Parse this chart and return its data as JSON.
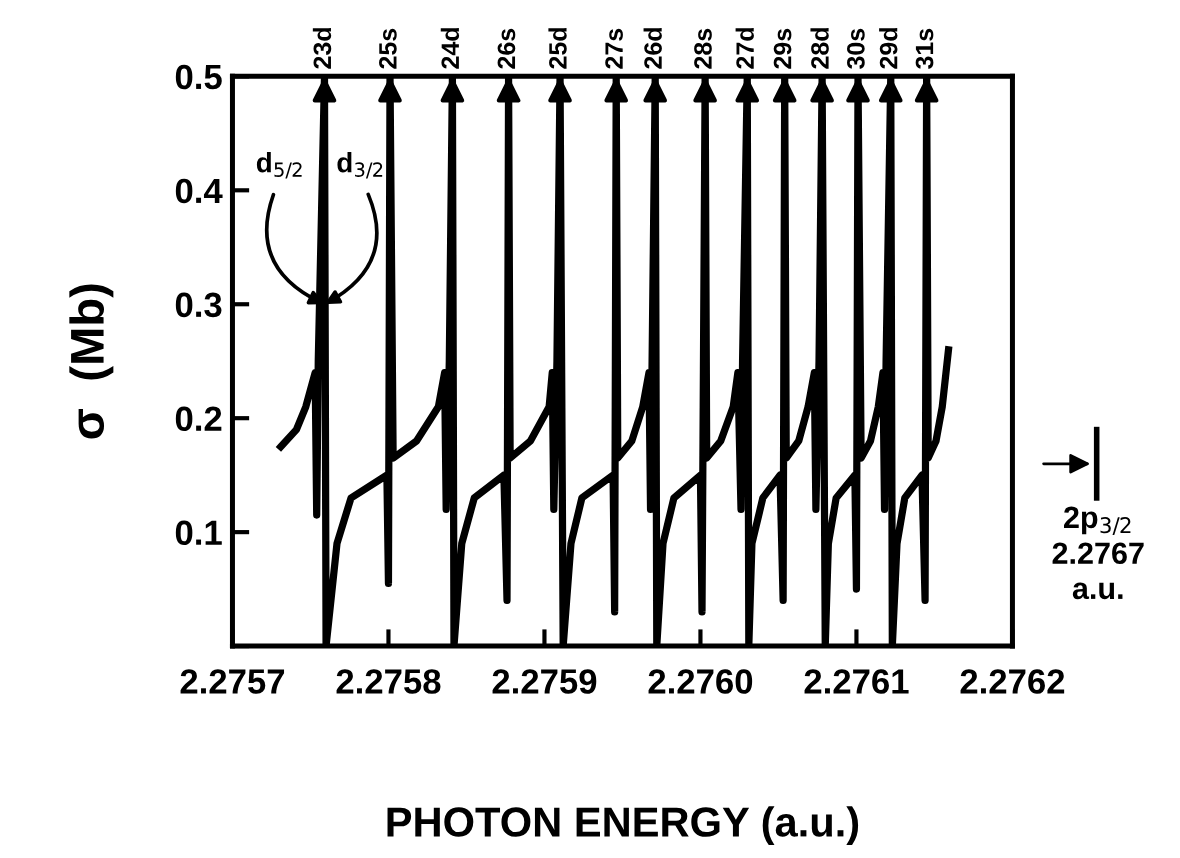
{
  "chart_data": {
    "type": "line",
    "xlabel": "PHOTON ENERGY (a.u.)",
    "ylabel": "σ  (Mb)",
    "x": [
      2.275731,
      2.275741,
      2.275747,
      2.275753,
      2.275754,
      2.275755,
      2.275759,
      2.27576,
      2.275767,
      2.275776,
      2.275799,
      2.2758,
      2.275801,
      2.275803,
      2.275818,
      2.275832,
      2.275836,
      2.275837,
      2.275839,
      2.275841,
      2.275842,
      2.275847,
      2.275855,
      2.275874,
      2.275876,
      2.275877,
      2.275878,
      2.275891,
      2.275903,
      2.275905,
      2.275906,
      2.275908,
      2.27591,
      2.275912,
      2.275917,
      2.275924,
      2.275944,
      2.275945,
      2.275946,
      2.275947,
      2.275956,
      2.275963,
      2.275967,
      2.275968,
      2.275969,
      2.275971,
      2.275972,
      2.275976,
      2.275983,
      2.276,
      2.276001,
      2.276003,
      2.276004,
      2.276013,
      2.276021,
      2.276024,
      2.276026,
      2.276027,
      2.27603,
      2.276031,
      2.276033,
      2.27604,
      2.276051,
      2.276053,
      2.276054,
      2.276055,
      2.276063,
      2.276069,
      2.276073,
      2.276074,
      2.276076,
      2.276078,
      2.27608,
      2.276082,
      2.276087,
      2.276099,
      2.2761,
      2.276101,
      2.276103,
      2.276109,
      2.276114,
      2.276117,
      2.276118,
      2.276119,
      2.276122,
      2.276123,
      2.276126,
      2.276131,
      2.276142,
      2.276144,
      2.276145,
      2.276146,
      2.276151,
      2.276155,
      2.276159
    ],
    "series": [
      {
        "color": "#000000",
        "values": [
          0.175,
          0.19,
          0.21,
          0.24,
          0.115,
          0.25,
          0.5,
          0.0,
          0.09,
          0.13,
          0.15,
          0.055,
          0.5,
          0.165,
          0.18,
          0.21,
          0.24,
          0.12,
          0.25,
          0.5,
          0.0,
          0.09,
          0.13,
          0.15,
          0.04,
          0.5,
          0.165,
          0.18,
          0.21,
          0.24,
          0.12,
          0.25,
          0.5,
          0.0,
          0.09,
          0.13,
          0.15,
          0.03,
          0.5,
          0.165,
          0.18,
          0.21,
          0.24,
          0.12,
          0.25,
          0.5,
          0.0,
          0.09,
          0.13,
          0.15,
          0.03,
          0.5,
          0.165,
          0.18,
          0.21,
          0.24,
          0.12,
          0.25,
          0.5,
          0.0,
          0.09,
          0.13,
          0.15,
          0.04,
          0.5,
          0.165,
          0.18,
          0.21,
          0.24,
          0.12,
          0.25,
          0.5,
          0.0,
          0.09,
          0.13,
          0.15,
          0.05,
          0.5,
          0.165,
          0.18,
          0.21,
          0.24,
          0.12,
          0.25,
          0.5,
          0.0,
          0.09,
          0.13,
          0.15,
          0.04,
          0.5,
          0.165,
          0.18,
          0.21,
          0.26
        ]
      }
    ],
    "xlim": [
      2.2757,
      2.2762
    ],
    "xticks": [
      2.2757,
      2.2758,
      2.2759,
      {
        "value": 2.276,
        "label": "2.2760"
      },
      2.2761,
      2.2762
    ],
    "ylim": [
      0,
      0.5
    ],
    "yticks": [
      {
        "value": 0,
        "label": null
      },
      0.1,
      0.2,
      0.3,
      0.4,
      0.5
    ],
    "grid": false,
    "legend": false,
    "marker": "none",
    "line_style": "solid",
    "annotations": [
      {
        "text": "23d",
        "x": 2.275759,
        "y": 0.5
      },
      {
        "text": "25s",
        "x": 2.275801,
        "y": 0.5
      },
      {
        "text": "24d",
        "x": 2.275841,
        "y": 0.5
      },
      {
        "text": "26s",
        "x": 2.275877,
        "y": 0.5
      },
      {
        "text": "25d",
        "x": 2.27591,
        "y": 0.5
      },
      {
        "text": "27s",
        "x": 2.275946,
        "y": 0.5
      },
      {
        "text": "26d",
        "x": 2.275971,
        "y": 0.5
      },
      {
        "text": "28s",
        "x": 2.276003,
        "y": 0.5
      },
      {
        "text": "27d",
        "x": 2.27603,
        "y": 0.5
      },
      {
        "text": "29s",
        "x": 2.276054,
        "y": 0.5
      },
      {
        "text": "28d",
        "x": 2.276078,
        "y": 0.5
      },
      {
        "text": "30s",
        "x": 2.276101,
        "y": 0.5
      },
      {
        "text": "29d",
        "x": 2.276122,
        "y": 0.5
      },
      {
        "text": "31s",
        "x": 2.276145,
        "y": 0.5
      },
      {
        "text": "d$_{5/2}$",
        "x": 2.275759,
        "y": 0.3
      },
      {
        "text": "d$_{3/2}$",
        "x": 2.275759,
        "y": 0.3
      },
      "2p$_{3/2}$\n2.2767\na.u."
    ]
  }
}
